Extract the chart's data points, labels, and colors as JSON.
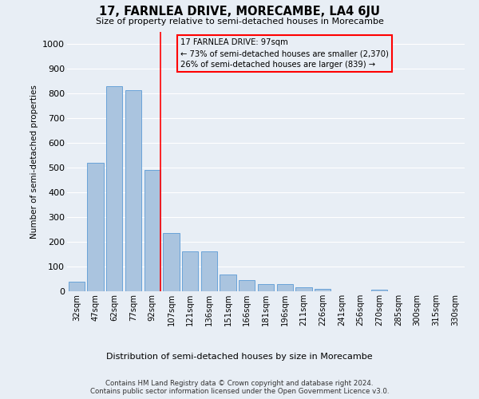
{
  "title": "17, FARNLEA DRIVE, MORECAMBE, LA4 6JU",
  "subtitle": "Size of property relative to semi-detached houses in Morecambe",
  "xlabel": "Distribution of semi-detached houses by size in Morecambe",
  "ylabel": "Number of semi-detached properties",
  "categories": [
    "32sqm",
    "47sqm",
    "62sqm",
    "77sqm",
    "92sqm",
    "107sqm",
    "121sqm",
    "136sqm",
    "151sqm",
    "166sqm",
    "181sqm",
    "196sqm",
    "211sqm",
    "226sqm",
    "241sqm",
    "256sqm",
    "270sqm",
    "285sqm",
    "300sqm",
    "315sqm",
    "330sqm"
  ],
  "values": [
    40,
    520,
    830,
    815,
    490,
    235,
    163,
    163,
    68,
    45,
    30,
    28,
    15,
    10,
    0,
    0,
    8,
    0,
    0,
    0,
    0
  ],
  "bar_color": "#aac4df",
  "bar_edge_color": "#5b9bd5",
  "red_line_index": 4,
  "annotation_title": "17 FARNLEA DRIVE: 97sqm",
  "annotation_line1": "← 73% of semi-detached houses are smaller (2,370)",
  "annotation_line2": "26% of semi-detached houses are larger (839) →",
  "ylim": [
    0,
    1050
  ],
  "yticks": [
    0,
    100,
    200,
    300,
    400,
    500,
    600,
    700,
    800,
    900,
    1000
  ],
  "footer_line1": "Contains HM Land Registry data © Crown copyright and database right 2024.",
  "footer_line2": "Contains public sector information licensed under the Open Government Licence v3.0.",
  "bg_color": "#e8eef5",
  "grid_color": "#ffffff"
}
